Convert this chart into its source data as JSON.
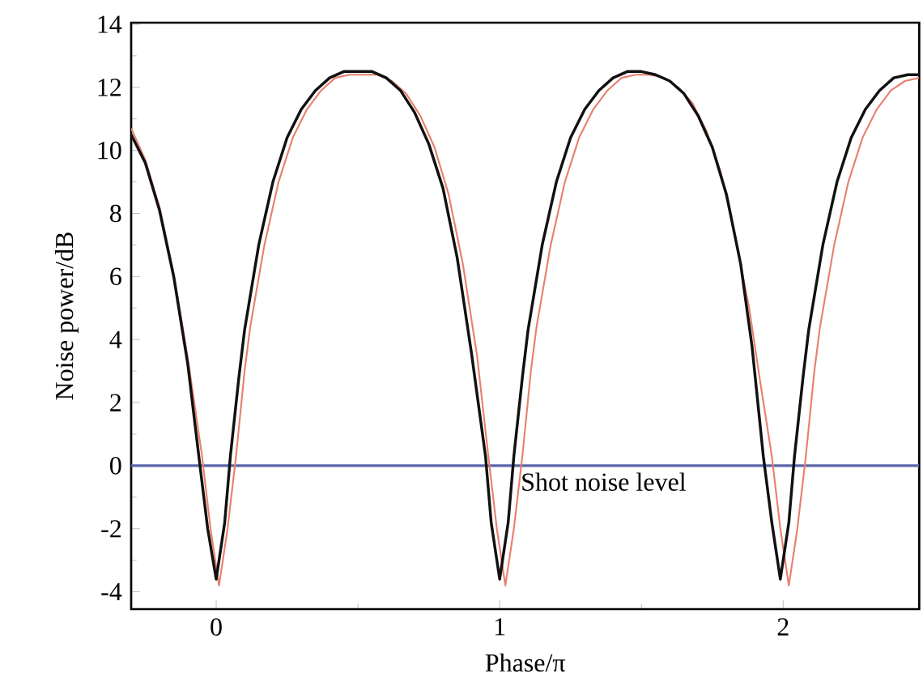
{
  "chart_data": {
    "type": "line",
    "xlabel": "Phase/π",
    "ylabel": "Noise power/dB",
    "xlim": [
      -0.3,
      2.48
    ],
    "ylim": [
      -4.55,
      14.05
    ],
    "xticks": [
      0,
      1,
      2
    ],
    "yticks": [
      -4,
      -2,
      0,
      2,
      4,
      6,
      8,
      10,
      12,
      14
    ],
    "grid": false,
    "marker": "none",
    "line_style": "solid",
    "series": [
      {
        "color": "#111111",
        "x": [
          -0.3,
          -0.25,
          -0.2,
          -0.15,
          -0.1,
          -0.06,
          -0.03,
          0,
          0.03,
          0.05,
          0.08,
          0.1,
          0.15,
          0.2,
          0.25,
          0.3,
          0.35,
          0.4,
          0.45,
          0.5,
          0.55,
          0.6,
          0.65,
          0.7,
          0.75,
          0.8,
          0.85,
          0.9,
          0.95,
          0.97,
          1.0,
          1.03,
          1.05,
          1.08,
          1.1,
          1.15,
          1.2,
          1.25,
          1.3,
          1.35,
          1.4,
          1.45,
          1.5,
          1.55,
          1.6,
          1.65,
          1.7,
          1.75,
          1.8,
          1.85,
          1.89,
          1.93,
          1.96,
          1.99,
          2.02,
          2.04,
          2.07,
          2.09,
          2.14,
          2.19,
          2.24,
          2.29,
          2.34,
          2.39,
          2.44,
          2.48
        ],
        "values": [
          10.5,
          9.6,
          8.1,
          6.0,
          3.2,
          0.2,
          -2.0,
          -3.6,
          -1.8,
          0.3,
          2.8,
          4.3,
          7.0,
          9.0,
          10.4,
          11.3,
          11.9,
          12.3,
          12.5,
          12.5,
          12.5,
          12.3,
          11.9,
          11.2,
          10.2,
          8.8,
          6.6,
          3.6,
          0.3,
          -1.8,
          -3.6,
          -1.8,
          0.3,
          2.8,
          4.3,
          7.0,
          9.0,
          10.4,
          11.3,
          11.9,
          12.3,
          12.5,
          12.5,
          12.4,
          12.2,
          11.8,
          11.1,
          10.1,
          8.6,
          6.4,
          3.8,
          0.3,
          -1.8,
          -3.6,
          -1.8,
          0.3,
          2.8,
          4.3,
          7.0,
          9.0,
          10.4,
          11.3,
          11.9,
          12.3,
          12.4,
          12.4
        ]
      },
      {
        "color": "#e8806e",
        "x": [
          -0.3,
          -0.25,
          -0.2,
          -0.15,
          -0.1,
          -0.05,
          -0.02,
          0.01,
          0.04,
          0.07,
          0.1,
          0.12,
          0.17,
          0.22,
          0.27,
          0.32,
          0.37,
          0.42,
          0.47,
          0.52,
          0.57,
          0.62,
          0.67,
          0.72,
          0.77,
          0.82,
          0.87,
          0.92,
          0.96,
          0.99,
          1.02,
          1.05,
          1.08,
          1.11,
          1.13,
          1.18,
          1.23,
          1.28,
          1.33,
          1.38,
          1.43,
          1.48,
          1.53,
          1.58,
          1.63,
          1.68,
          1.73,
          1.78,
          1.83,
          1.88,
          1.92,
          1.96,
          1.99,
          2.02,
          2.05,
          2.08,
          2.11,
          2.13,
          2.18,
          2.23,
          2.28,
          2.33,
          2.38,
          2.43,
          2.48
        ],
        "values": [
          10.7,
          9.7,
          8.2,
          6.1,
          3.4,
          0.3,
          -2.0,
          -3.8,
          -2.0,
          0.3,
          3.0,
          4.4,
          7.0,
          9.0,
          10.4,
          11.3,
          11.9,
          12.3,
          12.4,
          12.4,
          12.4,
          12.2,
          11.8,
          11.1,
          10.1,
          8.6,
          6.4,
          3.5,
          0.3,
          -2.0,
          -3.8,
          -2.0,
          0.3,
          3.0,
          4.4,
          7.0,
          9.0,
          10.4,
          11.3,
          11.9,
          12.3,
          12.4,
          12.4,
          12.3,
          12.0,
          11.5,
          10.6,
          9.3,
          7.3,
          5.0,
          2.6,
          0.3,
          -2.0,
          -3.8,
          -2.0,
          0.3,
          3.0,
          4.4,
          7.0,
          9.0,
          10.4,
          11.3,
          11.9,
          12.2,
          12.3
        ]
      }
    ],
    "ref_lines": [
      {
        "axis": "y",
        "value": 0,
        "label": "Shot noise level",
        "color": "#5a64a8"
      }
    ]
  }
}
